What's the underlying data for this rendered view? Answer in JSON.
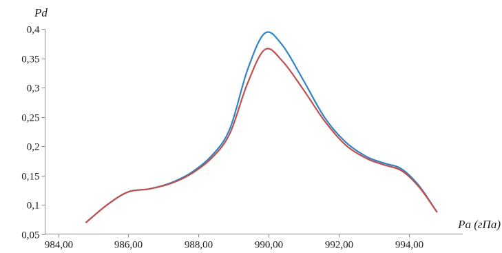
{
  "chart_data": {
    "type": "line",
    "xlabel": "Pa (гПа)",
    "ylabel": "Pd",
    "xlim": [
      984,
      995
    ],
    "ylim": [
      0.05,
      0.4
    ],
    "x_ticks": [
      984,
      986,
      988,
      990,
      992,
      994
    ],
    "x_tick_labels": [
      "984,00",
      "986,00",
      "988,00",
      "990,00",
      "992,00",
      "994,00"
    ],
    "y_ticks": [
      0.05,
      0.1,
      0.15,
      0.2,
      0.25,
      0.3,
      0.35,
      0.4
    ],
    "y_tick_labels": [
      "0,05",
      "0,1",
      "0,15",
      "0,2",
      "0,25",
      "0,3",
      "0,35",
      "0,4"
    ],
    "grid": false,
    "legend": "none",
    "series": [
      {
        "color": "#3083c4",
        "x": [
          984.8,
          985.4,
          986.0,
          986.6,
          987.2,
          987.8,
          988.4,
          988.9,
          989.4,
          989.9,
          990.4,
          991.0,
          991.6,
          992.2,
          992.8,
          993.3,
          993.8,
          994.3,
          994.8
        ],
        "y": [
          0.07,
          0.1,
          0.122,
          0.127,
          0.137,
          0.155,
          0.185,
          0.23,
          0.33,
          0.393,
          0.372,
          0.312,
          0.249,
          0.207,
          0.182,
          0.171,
          0.161,
          0.132,
          0.088
        ]
      },
      {
        "color": "#c0504d",
        "x": [
          984.8,
          985.4,
          986.0,
          986.6,
          987.2,
          987.8,
          988.4,
          988.9,
          989.4,
          989.9,
          990.4,
          991.0,
          991.6,
          992.2,
          992.8,
          993.3,
          993.8,
          994.3,
          994.8
        ],
        "y": [
          0.07,
          0.1,
          0.122,
          0.127,
          0.136,
          0.153,
          0.181,
          0.222,
          0.307,
          0.365,
          0.345,
          0.296,
          0.243,
          0.202,
          0.179,
          0.168,
          0.158,
          0.13,
          0.088
        ]
      }
    ]
  }
}
